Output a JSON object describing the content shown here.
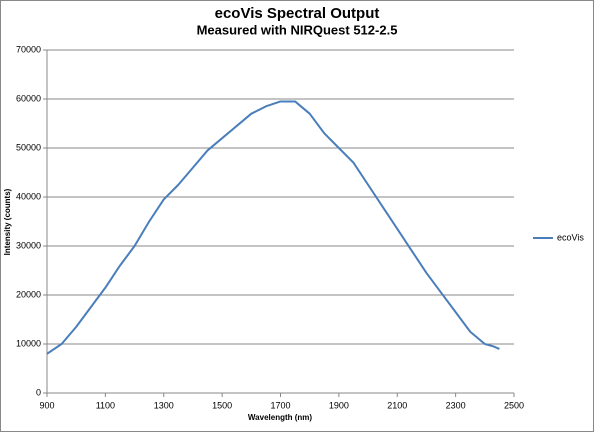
{
  "chart_data": {
    "type": "line",
    "title": "ecoVis Spectral Output",
    "subtitle": "Measured with NIRQuest 512-2.5",
    "x_label": "Wavelength (nm)",
    "y_label": "Intensity (counts)",
    "x": [
      900,
      950,
      1000,
      1050,
      1100,
      1150,
      1200,
      1250,
      1300,
      1350,
      1400,
      1450,
      1500,
      1550,
      1600,
      1650,
      1700,
      1750,
      1800,
      1850,
      1900,
      1950,
      2000,
      2050,
      2100,
      2150,
      2200,
      2250,
      2300,
      2350,
      2400,
      2430,
      2450
    ],
    "series": [
      {
        "name": "ecoVis",
        "color": "#4a7ebb",
        "values": [
          8000,
          10000,
          13500,
          17500,
          21500,
          26000,
          30000,
          35000,
          39500,
          42500,
          46000,
          49500,
          52000,
          54500,
          57000,
          58500,
          59500,
          59500,
          57000,
          53000,
          50000,
          47000,
          42500,
          38000,
          33500,
          29000,
          24500,
          20500,
          16500,
          12500,
          10000,
          9500,
          9000
        ]
      }
    ],
    "xlim": [
      900,
      2500
    ],
    "xticks": [
      900,
      1100,
      1300,
      1500,
      1700,
      1900,
      2100,
      2300,
      2500
    ],
    "ylim": [
      0,
      70000
    ],
    "yticks": [
      0,
      10000,
      20000,
      30000,
      40000,
      50000,
      60000,
      70000
    ],
    "grid": true,
    "legend": "right"
  }
}
